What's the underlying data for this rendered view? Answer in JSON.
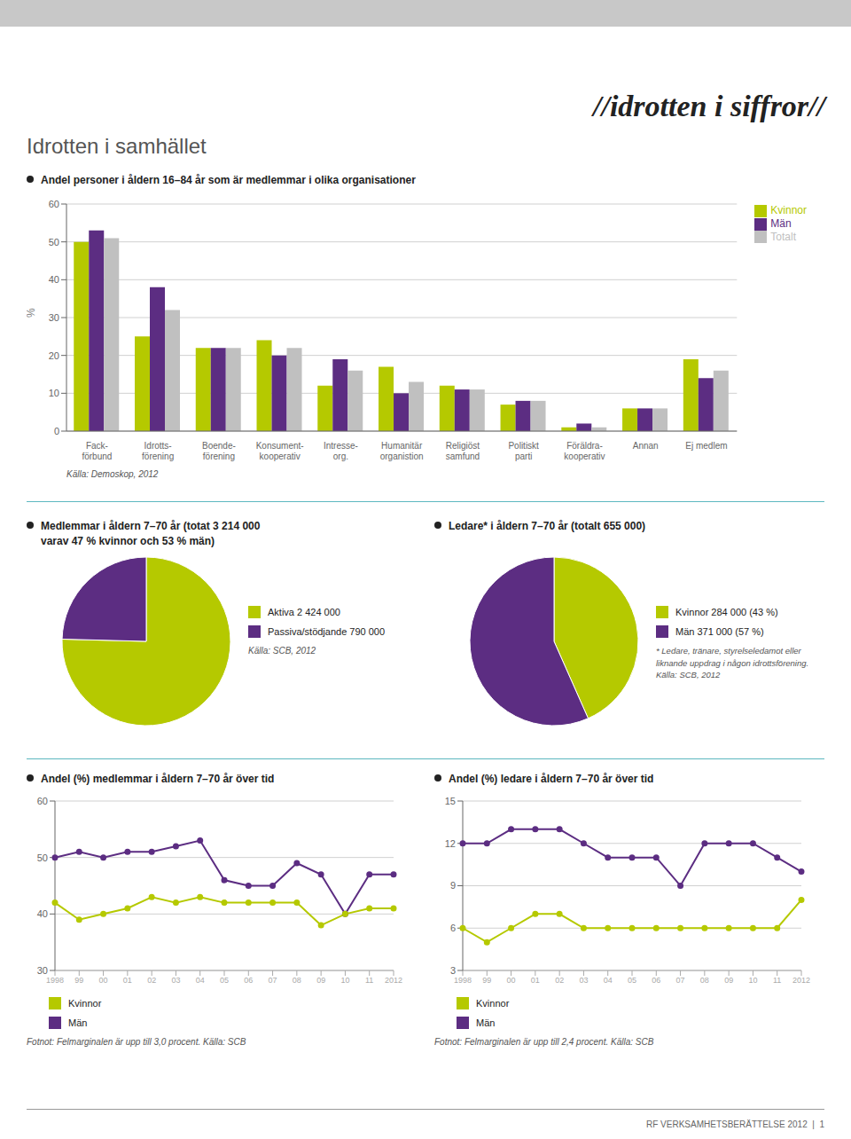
{
  "title": "//idrotten i siffror//",
  "subtitle": "Idrotten i samhället",
  "annotations": [
    "RF VERKSAMHETSBERÄTTELSE 2012  |  1"
  ],
  "chart_data": [
    {
      "type": "bar",
      "title": "Andel personer i åldern 16–84 år som är medlemmar i olika organisationer",
      "categories": [
        "Fack-\nförbund",
        "Idrotts-\nförening",
        "Boende-\nförening",
        "Konsument-\nkooperativ",
        "Intresse-\norg.",
        "Humanitär\norganistion",
        "Religiöst\nsamfund",
        "Politiskt\nparti",
        "Föräldra-\nkooperativ",
        "Annan",
        "Ej medlem"
      ],
      "series": [
        {
          "name": "Kvinnor",
          "color": "#b5c900",
          "values": [
            50,
            25,
            22,
            24,
            12,
            17,
            12,
            7,
            1,
            6,
            19
          ]
        },
        {
          "name": "Män",
          "color": "#5c2d82",
          "values": [
            53,
            38,
            22,
            20,
            19,
            10,
            11,
            8,
            2,
            6,
            14
          ]
        },
        {
          "name": "Totalt",
          "color": "#c0c0c0",
          "values": [
            51,
            32,
            22,
            22,
            16,
            13,
            11,
            8,
            1,
            6,
            16
          ]
        }
      ],
      "ylabel": "%",
      "ylim": [
        0,
        60
      ],
      "yticks": [
        0,
        10,
        20,
        30,
        40,
        50,
        60
      ],
      "grid": true,
      "legend": "right",
      "annotations": [
        "Källa: Demoskop, 2012"
      ]
    },
    {
      "type": "pie",
      "title": "Medlemmar i åldern 7–70 år (totat 3 214 000\nvarav 47 % kvinnor och 53 % män)",
      "categories": [
        "Aktiva 2 424 000",
        "Passiva/stödjande 790 000"
      ],
      "values": [
        2424,
        790
      ],
      "colors": [
        "#b5c900",
        "#5c2d82"
      ],
      "legend": "right",
      "annotations": [
        "Källa: SCB, 2012"
      ]
    },
    {
      "type": "pie",
      "title": "Ledare* i åldern 7–70 år (totalt 655 000)",
      "categories": [
        "Kvinnor 284 000 (43 %)",
        "Män 371 000 (57 %)"
      ],
      "values": [
        284,
        371
      ],
      "colors": [
        "#b5c900",
        "#5c2d82"
      ],
      "legend": "right",
      "annotations": [
        "* Ledare, tränare, styrelseledamot eller\nliknande uppdrag i någon idrottsförening.\nKälla: SCB, 2012"
      ]
    },
    {
      "type": "line",
      "title": "Andel (%) medlemmar i åldern 7–70 år över tid",
      "categories": [
        "1998",
        "99",
        "00",
        "01",
        "02",
        "03",
        "04",
        "05",
        "06",
        "07",
        "08",
        "09",
        "10",
        "11",
        "2012"
      ],
      "series": [
        {
          "name": "Män",
          "color": "#5c2d82",
          "marker": "circle",
          "values": [
            50,
            51,
            50,
            51,
            51,
            52,
            53,
            46,
            45,
            45,
            49,
            47,
            40,
            47,
            47
          ]
        },
        {
          "name": "Kvinnor",
          "color": "#b5c900",
          "marker": "circle",
          "values": [
            42,
            39,
            40,
            41,
            43,
            42,
            43,
            42,
            42,
            42,
            42,
            38,
            40,
            41,
            41
          ]
        }
      ],
      "ylim": [
        30,
        60
      ],
      "yticks": [
        30,
        40,
        50,
        60
      ],
      "grid": true,
      "legend": "bottom",
      "annotations": [
        "Fotnot: Felmarginalen är upp till 3,0 procent. Källa: SCB"
      ]
    },
    {
      "type": "line",
      "title": "Andel (%) ledare i åldern 7–70 år över tid",
      "categories": [
        "1998",
        "99",
        "00",
        "01",
        "02",
        "03",
        "04",
        "05",
        "06",
        "07",
        "08",
        "09",
        "10",
        "11",
        "2012"
      ],
      "series": [
        {
          "name": "Män",
          "color": "#5c2d82",
          "marker": "circle",
          "values": [
            12,
            12,
            13,
            13,
            13,
            12,
            11,
            11,
            11,
            9,
            12,
            12,
            12,
            11,
            10
          ]
        },
        {
          "name": "Kvinnor",
          "color": "#b5c900",
          "marker": "circle",
          "values": [
            6,
            5,
            6,
            7,
            7,
            6,
            6,
            6,
            6,
            6,
            6,
            6,
            6,
            6,
            8
          ]
        }
      ],
      "ylim": [
        3,
        15
      ],
      "yticks": [
        3,
        6,
        9,
        12,
        15
      ],
      "grid": true,
      "legend": "bottom",
      "annotations": [
        "Fotnot: Felmarginalen är upp till 2,4 procent. Källa: SCB"
      ]
    }
  ]
}
